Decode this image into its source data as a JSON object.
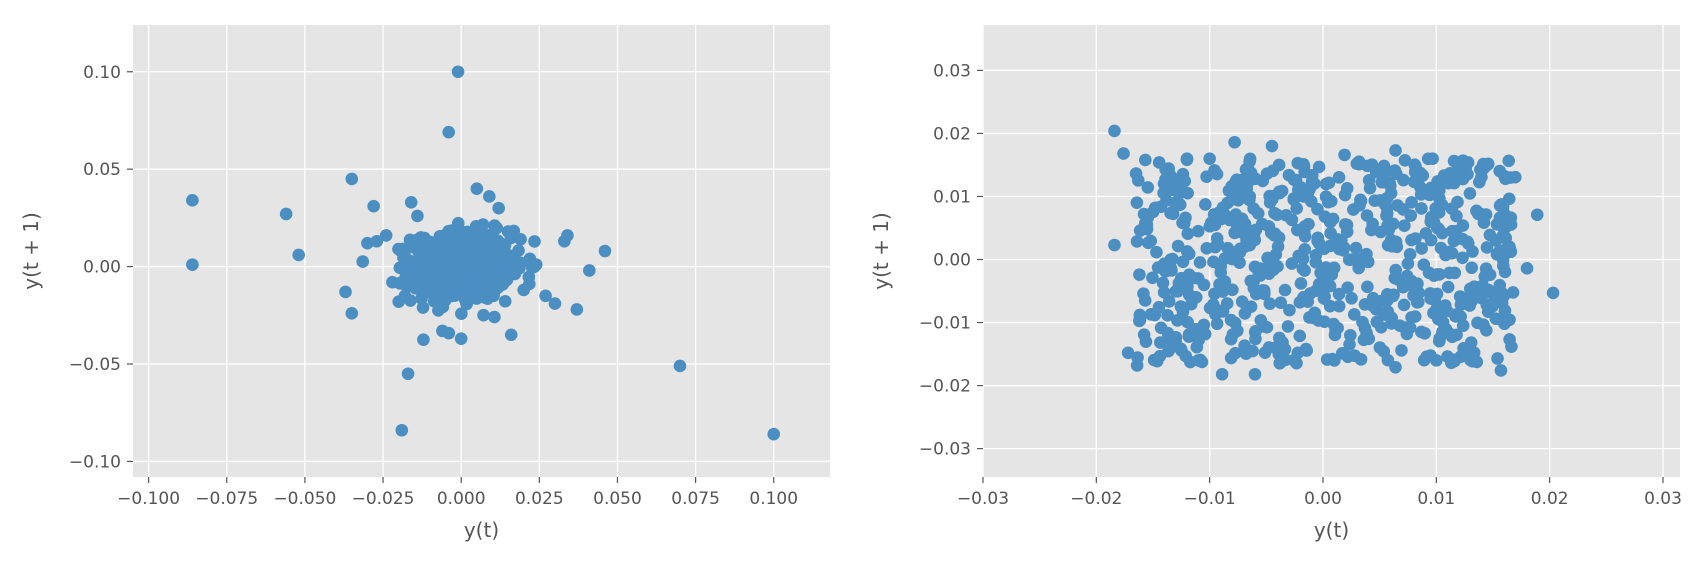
{
  "chart_data": [
    {
      "type": "scatter",
      "title": "",
      "xlabel": "y(t)",
      "ylabel": "y(t + 1)",
      "xlim": [
        -0.105,
        0.118
      ],
      "ylim": [
        -0.108,
        0.124
      ],
      "xticks": [
        -0.1,
        -0.075,
        -0.05,
        -0.025,
        0.0,
        0.025,
        0.05,
        0.075,
        0.1
      ],
      "xtick_labels": [
        "−0.100",
        "−0.075",
        "−0.050",
        "−0.025",
        "0.000",
        "0.025",
        "0.050",
        "0.075",
        "0.100"
      ],
      "yticks": [
        -0.1,
        -0.05,
        0.0,
        0.05,
        0.1
      ],
      "ytick_labels": [
        "−0.10",
        "−0.05",
        "0.00",
        "0.05",
        "0.10"
      ],
      "grid": true,
      "point_color": "#4a8ec2",
      "background": "#e5e5e5",
      "points": [
        [
          -0.086,
          0.034
        ],
        [
          -0.086,
          0.001
        ],
        [
          -0.056,
          0.027
        ],
        [
          -0.052,
          0.006
        ],
        [
          -0.037,
          -0.013
        ],
        [
          -0.035,
          0.045
        ],
        [
          -0.035,
          -0.024
        ],
        [
          -0.028,
          0.031
        ],
        [
          -0.019,
          -0.084
        ],
        [
          -0.017,
          -0.055
        ],
        [
          -0.004,
          0.069
        ],
        [
          -0.001,
          0.1
        ],
        [
          0.07,
          -0.051
        ],
        [
          0.1,
          -0.086
        ],
        [
          0.046,
          0.008
        ],
        [
          0.041,
          -0.002
        ],
        [
          0.037,
          -0.022
        ],
        [
          0.034,
          0.016
        ],
        [
          0.033,
          0.013
        ],
        [
          0.03,
          -0.019
        ],
        [
          0.027,
          -0.015
        ],
        [
          0.016,
          -0.035
        ],
        [
          0.012,
          0.03
        ],
        [
          0.009,
          0.036
        ],
        [
          0.005,
          0.04
        ],
        [
          -0.016,
          0.033
        ],
        [
          -0.014,
          0.026
        ],
        [
          -0.006,
          -0.033
        ],
        [
          0.0,
          -0.037
        ],
        [
          -0.03,
          0.012
        ],
        [
          -0.027,
          0.013
        ],
        [
          -0.024,
          0.016
        ],
        [
          -0.022,
          -0.008
        ],
        [
          -0.02,
          -0.018
        ],
        [
          -0.018,
          -0.015
        ],
        [
          0.022,
          0.004
        ],
        [
          0.02,
          -0.012
        ],
        [
          0.024,
          0.001
        ],
        [
          0.019,
          0.014
        ],
        [
          0.015,
          0.018
        ]
      ]
    },
    {
      "type": "scatter",
      "title": "",
      "xlabel": "y(t)",
      "ylabel": "y(t + 1)",
      "xlim": [
        -0.03,
        0.0315
      ],
      "ylim": [
        -0.0345,
        0.0372
      ],
      "xticks": [
        -0.03,
        -0.02,
        -0.01,
        0.0,
        0.01,
        0.02,
        0.03
      ],
      "xtick_labels": [
        "−0.03",
        "−0.02",
        "−0.01",
        "0.00",
        "0.01",
        "0.02",
        "0.03"
      ],
      "yticks": [
        -0.03,
        -0.02,
        -0.01,
        0.0,
        0.01,
        0.02,
        0.03
      ],
      "ytick_labels": [
        "−0.03",
        "−0.02",
        "−0.01",
        "0.00",
        "0.01",
        "0.02",
        "0.03"
      ],
      "grid": true,
      "point_color": "#4a8ec2",
      "background": "#e5e5e5",
      "points": [
        [
          -0.0184,
          0.0204
        ],
        [
          -0.0184,
          0.0023
        ],
        [
          -0.0176,
          0.0168
        ],
        [
          -0.0172,
          -0.0148
        ],
        [
          -0.0164,
          -0.0168
        ],
        [
          -0.0162,
          -0.0024
        ],
        [
          0.0203,
          -0.0053
        ],
        [
          0.0189,
          0.0071
        ],
        [
          0.018,
          -0.0014
        ],
        [
          0.0157,
          -0.0176
        ],
        [
          -0.0078,
          0.0186
        ],
        [
          -0.006,
          -0.0182
        ],
        [
          -0.0089,
          -0.0182
        ],
        [
          0.0019,
          0.0166
        ],
        [
          0.0064,
          0.0173
        ],
        [
          0.0123,
          0.0156
        ],
        [
          0.0145,
          0.015
        ],
        [
          0.0161,
          0.0128
        ],
        [
          0.0154,
          -0.0157
        ],
        [
          0.0116,
          -0.0161
        ],
        [
          -0.012,
          0.016
        ],
        [
          -0.01,
          0.016
        ],
        [
          -0.0045,
          0.018
        ],
        [
          0.01,
          -0.016
        ],
        [
          0.0064,
          -0.0171
        ],
        [
          -0.0015,
          -0.0142
        ],
        [
          -0.011,
          -0.016
        ],
        [
          -0.013,
          -0.013
        ]
      ]
    }
  ]
}
